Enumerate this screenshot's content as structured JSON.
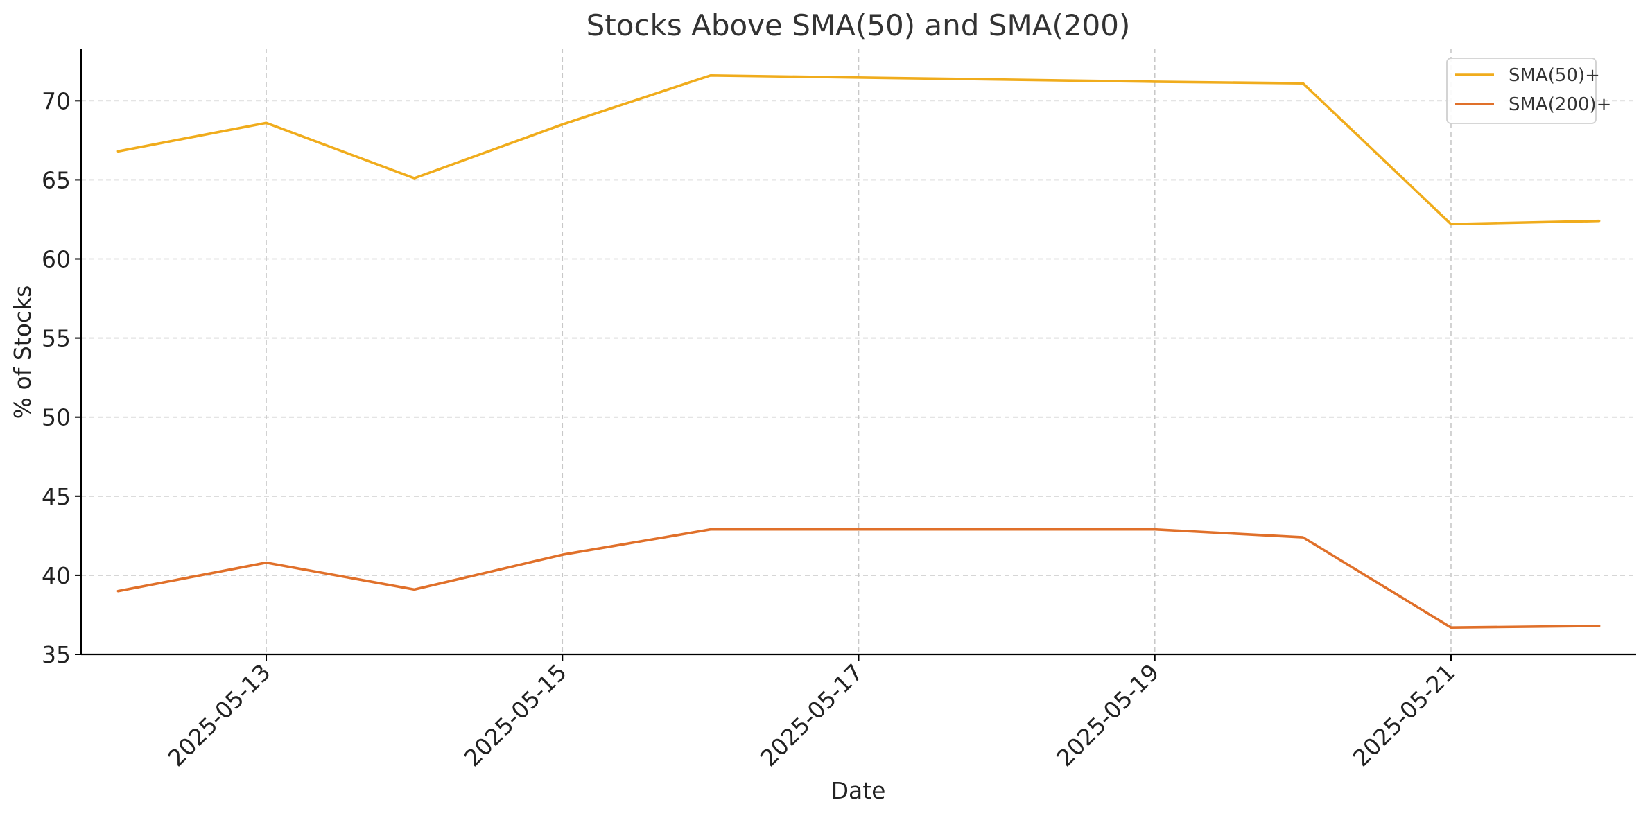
{
  "chart_data": {
    "type": "line",
    "title": "Stocks Above SMA(50) and SMA(200)",
    "xlabel": "Date",
    "ylabel": "% of Stocks",
    "x": [
      "2025-05-12",
      "2025-05-13",
      "2025-05-14",
      "2025-05-15",
      "2025-05-16",
      "2025-05-19",
      "2025-05-20",
      "2025-05-21",
      "2025-05-22"
    ],
    "x_day_offsets": [
      0,
      1,
      2,
      3,
      4,
      7,
      8,
      9,
      10
    ],
    "xticks": [
      "2025-05-13",
      "2025-05-15",
      "2025-05-17",
      "2025-05-19",
      "2025-05-21"
    ],
    "xtick_day_offsets": [
      1,
      3,
      5,
      7,
      9
    ],
    "xlim_days": [
      -0.25,
      10.25
    ],
    "ylim": [
      35,
      73.3
    ],
    "yticks": [
      35,
      40,
      45,
      50,
      55,
      60,
      65,
      70
    ],
    "grid": true,
    "legend_position": "top-right",
    "series": [
      {
        "name": "SMA(50)+",
        "color": "#f0ac1c",
        "values": [
          66.8,
          68.6,
          65.1,
          68.5,
          71.6,
          71.2,
          71.1,
          62.2,
          62.4
        ]
      },
      {
        "name": "SMA(200)+",
        "color": "#e0702a",
        "values": [
          39.0,
          40.8,
          39.1,
          41.3,
          42.9,
          42.9,
          42.4,
          36.7,
          36.8
        ]
      }
    ]
  }
}
